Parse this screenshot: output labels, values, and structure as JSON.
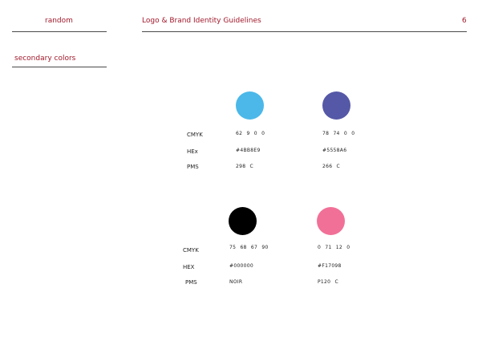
{
  "header": {
    "brand": "random",
    "title": "Logo & Brand Identity Guidelines",
    "page_number": "6"
  },
  "section": {
    "title": "secondary colors"
  },
  "labels_top": {
    "cmyk": "CMYK",
    "hex": "HEx",
    "pms": "PMS"
  },
  "labels_bottom": {
    "cmyk": "CMYK",
    "hex": "HEX",
    "pms": "PMS"
  },
  "colors": [
    {
      "name": "light-blue",
      "swatch": "#4BB8E9",
      "cmyk": "62 9 0 0",
      "hex": "#4BB8E9",
      "pms": "298 C"
    },
    {
      "name": "purple",
      "swatch": "#5558A6",
      "cmyk": "78 74 0 0",
      "hex": "#5558A6",
      "pms": "266 C"
    },
    {
      "name": "black",
      "swatch": "#000000",
      "cmyk": "75 68 67 90",
      "hex": "#000000",
      "pms": "NOIR"
    },
    {
      "name": "pink",
      "swatch": "#F17098",
      "cmyk": "0 71 12 0",
      "hex": "#F17098",
      "pms": "P120 C"
    }
  ]
}
